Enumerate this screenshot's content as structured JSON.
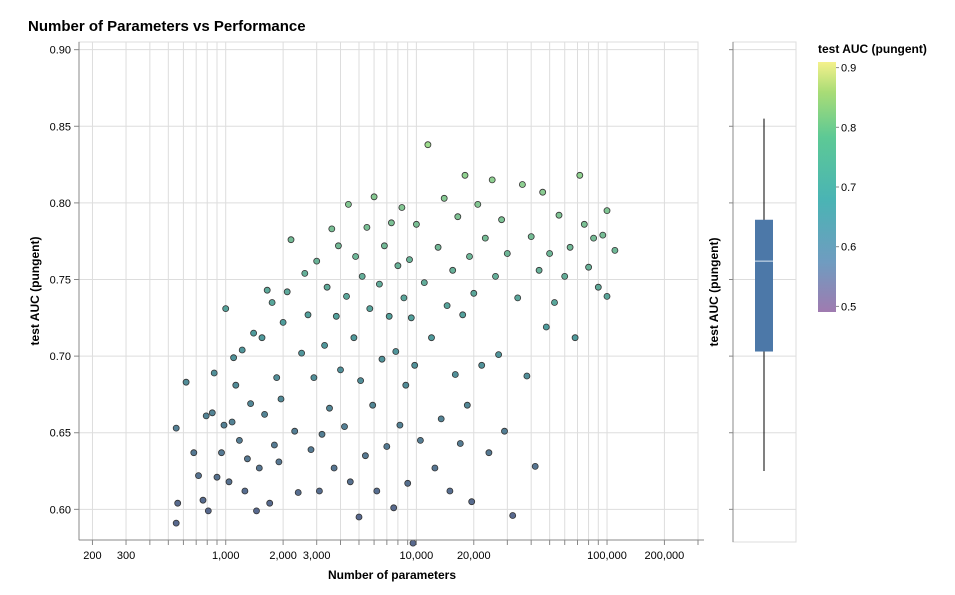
{
  "chart_data": [
    {
      "type": "scatter",
      "title": "Number of Parameters vs Performance",
      "xlabel": "Number of parameters",
      "ylabel": "test AUC (pungent)",
      "x_scale": "log",
      "xlim": [
        170,
        300000
      ],
      "ylim": [
        0.58,
        0.905
      ],
      "x_tick_labels": [
        "200",
        "300",
        "1,000",
        "2,000",
        "3,000",
        "10,000",
        "20,000",
        "100,000",
        "200,000"
      ],
      "x_tick_values": [
        200,
        300,
        1000,
        2000,
        3000,
        10000,
        20000,
        100000,
        200000
      ],
      "y_tick_labels": [
        "0.60",
        "0.65",
        "0.70",
        "0.75",
        "0.80",
        "0.85",
        "0.90"
      ],
      "y_tick_values": [
        0.6,
        0.65,
        0.7,
        0.75,
        0.8,
        0.85,
        0.9
      ],
      "grid": true,
      "color_encoding": "test AUC (pungent)",
      "colormap": "viridis",
      "point_count_approx": 1000,
      "points": [
        [
          550,
          0.653
        ],
        [
          560,
          0.604
        ],
        [
          550,
          0.591
        ],
        [
          620,
          0.683
        ],
        [
          680,
          0.637
        ],
        [
          720,
          0.622
        ],
        [
          760,
          0.606
        ],
        [
          790,
          0.661
        ],
        [
          810,
          0.599
        ],
        [
          850,
          0.663
        ],
        [
          870,
          0.689
        ],
        [
          900,
          0.621
        ],
        [
          950,
          0.637
        ],
        [
          980,
          0.655
        ],
        [
          1000,
          0.731
        ],
        [
          1040,
          0.618
        ],
        [
          1080,
          0.657
        ],
        [
          1100,
          0.699
        ],
        [
          1130,
          0.681
        ],
        [
          1180,
          0.645
        ],
        [
          1220,
          0.704
        ],
        [
          1260,
          0.612
        ],
        [
          1300,
          0.633
        ],
        [
          1350,
          0.669
        ],
        [
          1400,
          0.715
        ],
        [
          1450,
          0.599
        ],
        [
          1500,
          0.627
        ],
        [
          1550,
          0.712
        ],
        [
          1600,
          0.662
        ],
        [
          1650,
          0.743
        ],
        [
          1700,
          0.604
        ],
        [
          1750,
          0.735
        ],
        [
          1800,
          0.642
        ],
        [
          1850,
          0.686
        ],
        [
          1900,
          0.631
        ],
        [
          1950,
          0.672
        ],
        [
          2000,
          0.722
        ],
        [
          2100,
          0.742
        ],
        [
          2200,
          0.776
        ],
        [
          2300,
          0.651
        ],
        [
          2400,
          0.611
        ],
        [
          2500,
          0.702
        ],
        [
          2600,
          0.754
        ],
        [
          2700,
          0.727
        ],
        [
          2800,
          0.639
        ],
        [
          2900,
          0.686
        ],
        [
          3000,
          0.762
        ],
        [
          3100,
          0.612
        ],
        [
          3200,
          0.649
        ],
        [
          3300,
          0.707
        ],
        [
          3400,
          0.745
        ],
        [
          3500,
          0.666
        ],
        [
          3600,
          0.783
        ],
        [
          3700,
          0.627
        ],
        [
          3800,
          0.726
        ],
        [
          3900,
          0.772
        ],
        [
          4000,
          0.691
        ],
        [
          4200,
          0.654
        ],
        [
          4300,
          0.739
        ],
        [
          4400,
          0.799
        ],
        [
          4500,
          0.618
        ],
        [
          4700,
          0.712
        ],
        [
          4800,
          0.765
        ],
        [
          5000,
          0.595
        ],
        [
          5100,
          0.684
        ],
        [
          5200,
          0.752
        ],
        [
          5400,
          0.635
        ],
        [
          5500,
          0.784
        ],
        [
          5700,
          0.731
        ],
        [
          5900,
          0.668
        ],
        [
          6000,
          0.804
        ],
        [
          6200,
          0.612
        ],
        [
          6400,
          0.747
        ],
        [
          6600,
          0.698
        ],
        [
          6800,
          0.772
        ],
        [
          7000,
          0.641
        ],
        [
          7200,
          0.726
        ],
        [
          7400,
          0.787
        ],
        [
          7600,
          0.601
        ],
        [
          7800,
          0.703
        ],
        [
          8000,
          0.759
        ],
        [
          8200,
          0.655
        ],
        [
          8400,
          0.797
        ],
        [
          8600,
          0.738
        ],
        [
          8800,
          0.681
        ],
        [
          9000,
          0.617
        ],
        [
          9200,
          0.763
        ],
        [
          9400,
          0.725
        ],
        [
          9600,
          0.578
        ],
        [
          9800,
          0.694
        ],
        [
          10000,
          0.786
        ],
        [
          10500,
          0.645
        ],
        [
          11000,
          0.748
        ],
        [
          11500,
          0.838
        ],
        [
          12000,
          0.712
        ],
        [
          12500,
          0.627
        ],
        [
          13000,
          0.771
        ],
        [
          13500,
          0.659
        ],
        [
          14000,
          0.803
        ],
        [
          14500,
          0.733
        ],
        [
          15000,
          0.612
        ],
        [
          15500,
          0.756
        ],
        [
          16000,
          0.688
        ],
        [
          16500,
          0.791
        ],
        [
          17000,
          0.643
        ],
        [
          17500,
          0.727
        ],
        [
          18000,
          0.818
        ],
        [
          18500,
          0.668
        ],
        [
          19000,
          0.765
        ],
        [
          19500,
          0.605
        ],
        [
          20000,
          0.741
        ],
        [
          21000,
          0.799
        ],
        [
          22000,
          0.694
        ],
        [
          23000,
          0.777
        ],
        [
          24000,
          0.637
        ],
        [
          25000,
          0.815
        ],
        [
          26000,
          0.752
        ],
        [
          27000,
          0.701
        ],
        [
          28000,
          0.789
        ],
        [
          29000,
          0.651
        ],
        [
          30000,
          0.767
        ],
        [
          32000,
          0.596
        ],
        [
          34000,
          0.738
        ],
        [
          36000,
          0.812
        ],
        [
          38000,
          0.687
        ],
        [
          40000,
          0.778
        ],
        [
          42000,
          0.628
        ],
        [
          44000,
          0.756
        ],
        [
          46000,
          0.807
        ],
        [
          48000,
          0.719
        ],
        [
          50000,
          0.767
        ],
        [
          53000,
          0.735
        ],
        [
          56000,
          0.792
        ],
        [
          60000,
          0.752
        ],
        [
          64000,
          0.771
        ],
        [
          68000,
          0.712
        ],
        [
          72000,
          0.818
        ],
        [
          76000,
          0.786
        ],
        [
          80000,
          0.758
        ],
        [
          85000,
          0.777
        ],
        [
          90000,
          0.745
        ],
        [
          95000,
          0.779
        ],
        [
          100000,
          0.795
        ],
        [
          100000,
          0.739
        ],
        [
          110000,
          0.769
        ]
      ]
    },
    {
      "type": "boxplot",
      "ylabel": "test AUC (pungent)",
      "whisker_low": 0.625,
      "q1": 0.703,
      "median": 0.762,
      "q3": 0.789,
      "whisker_high": 0.855,
      "color": "#4c78a8",
      "median_color": "#dbe7f3"
    }
  ],
  "legend": {
    "title": "test AUC (pungent)",
    "labels": [
      "0.9",
      "0.8",
      "0.7",
      "0.6",
      "0.5"
    ],
    "values": [
      0.9,
      0.8,
      0.7,
      0.6,
      0.5
    ],
    "domain": [
      0.4906,
      0.9094
    ]
  },
  "colors": {
    "viridis_stops": [
      "#9f7bb0",
      "#6f9cc0",
      "#4ab4b4",
      "#5dc995",
      "#a9dc76",
      "#f4f18c"
    ],
    "point_fill_low": "#3b4f7a",
    "point_fill_high": "#8fd87a",
    "point_stroke": "#333333",
    "box_fill": "#4c78a8"
  }
}
